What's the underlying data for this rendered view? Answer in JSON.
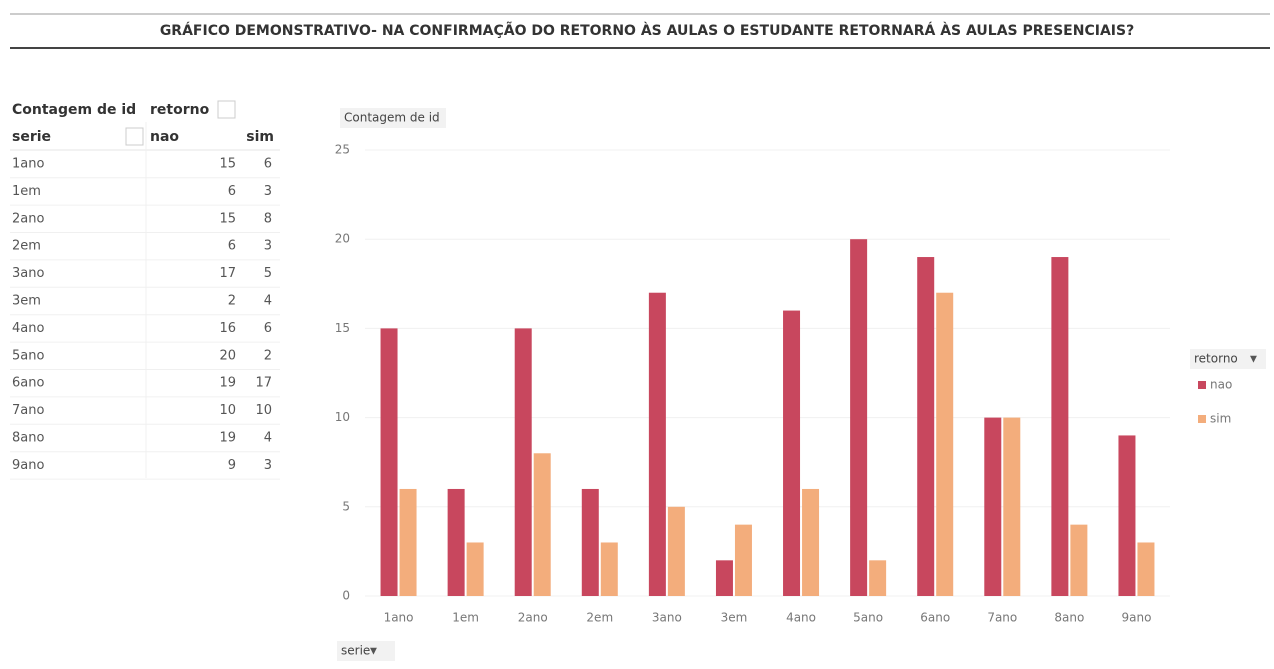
{
  "title": "GRÁFICO DEMONSTRATIVO- NA CONFIRMAÇÃO DO RETORNO ÀS AULAS O ESTUDANTE RETORNARÁ ÀS AULAS PRESENCIAIS?",
  "table": {
    "corner": "Contagem de id",
    "column_field": "retorno",
    "row_field": "serie",
    "columns": [
      "nao",
      "sim"
    ],
    "rows": [
      [
        "1ano",
        15,
        6
      ],
      [
        "1em",
        6,
        3
      ],
      [
        "2ano",
        15,
        8
      ],
      [
        "2em",
        6,
        3
      ],
      [
        "3ano",
        17,
        5
      ],
      [
        "3em",
        2,
        4
      ],
      [
        "4ano",
        16,
        6
      ],
      [
        "5ano",
        20,
        2
      ],
      [
        "6ano",
        19,
        17
      ],
      [
        "7ano",
        10,
        10
      ],
      [
        "8ano",
        19,
        4
      ],
      [
        "9ano",
        9,
        3
      ]
    ]
  },
  "chart_data": {
    "type": "bar",
    "y_label": "Contagem de id",
    "x_field": "serie",
    "legend_title": "retorno",
    "categories": [
      "1ano",
      "1em",
      "2ano",
      "2em",
      "3ano",
      "3em",
      "4ano",
      "5ano",
      "6ano",
      "7ano",
      "8ano",
      "9ano"
    ],
    "series": [
      {
        "name": "nao",
        "color": "#c8475e",
        "values": [
          15,
          6,
          15,
          6,
          17,
          2,
          16,
          20,
          19,
          10,
          19,
          9
        ]
      },
      {
        "name": "sim",
        "color": "#f3ad7c",
        "values": [
          6,
          3,
          8,
          3,
          5,
          4,
          6,
          2,
          17,
          10,
          4,
          3
        ]
      }
    ],
    "ylim": [
      0,
      25
    ],
    "yticks": [
      0,
      5,
      10,
      15,
      20,
      25
    ],
    "grid": true,
    "legend": "right"
  }
}
